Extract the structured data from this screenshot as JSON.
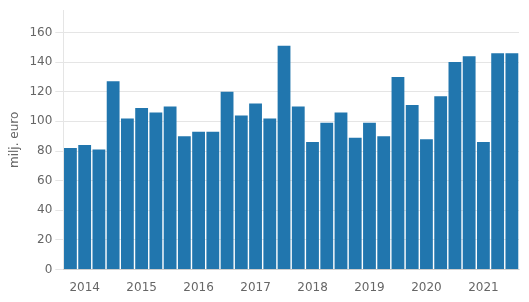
{
  "chart_data": {
    "type": "bar",
    "ylabel": "milj. euro",
    "categories": [
      null,
      "2014",
      null,
      null,
      null,
      "2015",
      null,
      null,
      null,
      "2016",
      null,
      null,
      null,
      "2017",
      null,
      null,
      null,
      "2018",
      null,
      null,
      null,
      "2019",
      null,
      null,
      null,
      "2020",
      null,
      null,
      null,
      "2021",
      null,
      null
    ],
    "values": [
      82,
      84,
      81,
      127,
      102,
      109,
      106,
      110,
      90,
      93,
      93,
      120,
      104,
      112,
      102,
      151,
      110,
      86,
      99,
      106,
      89,
      99,
      90,
      130,
      111,
      88,
      117,
      140,
      144,
      86,
      146,
      146
    ],
    "color": "#2176ae",
    "ylim": [
      0,
      175
    ],
    "yticks": [
      0,
      20,
      40,
      60,
      80,
      100,
      120,
      140,
      160
    ],
    "grid": true
  }
}
